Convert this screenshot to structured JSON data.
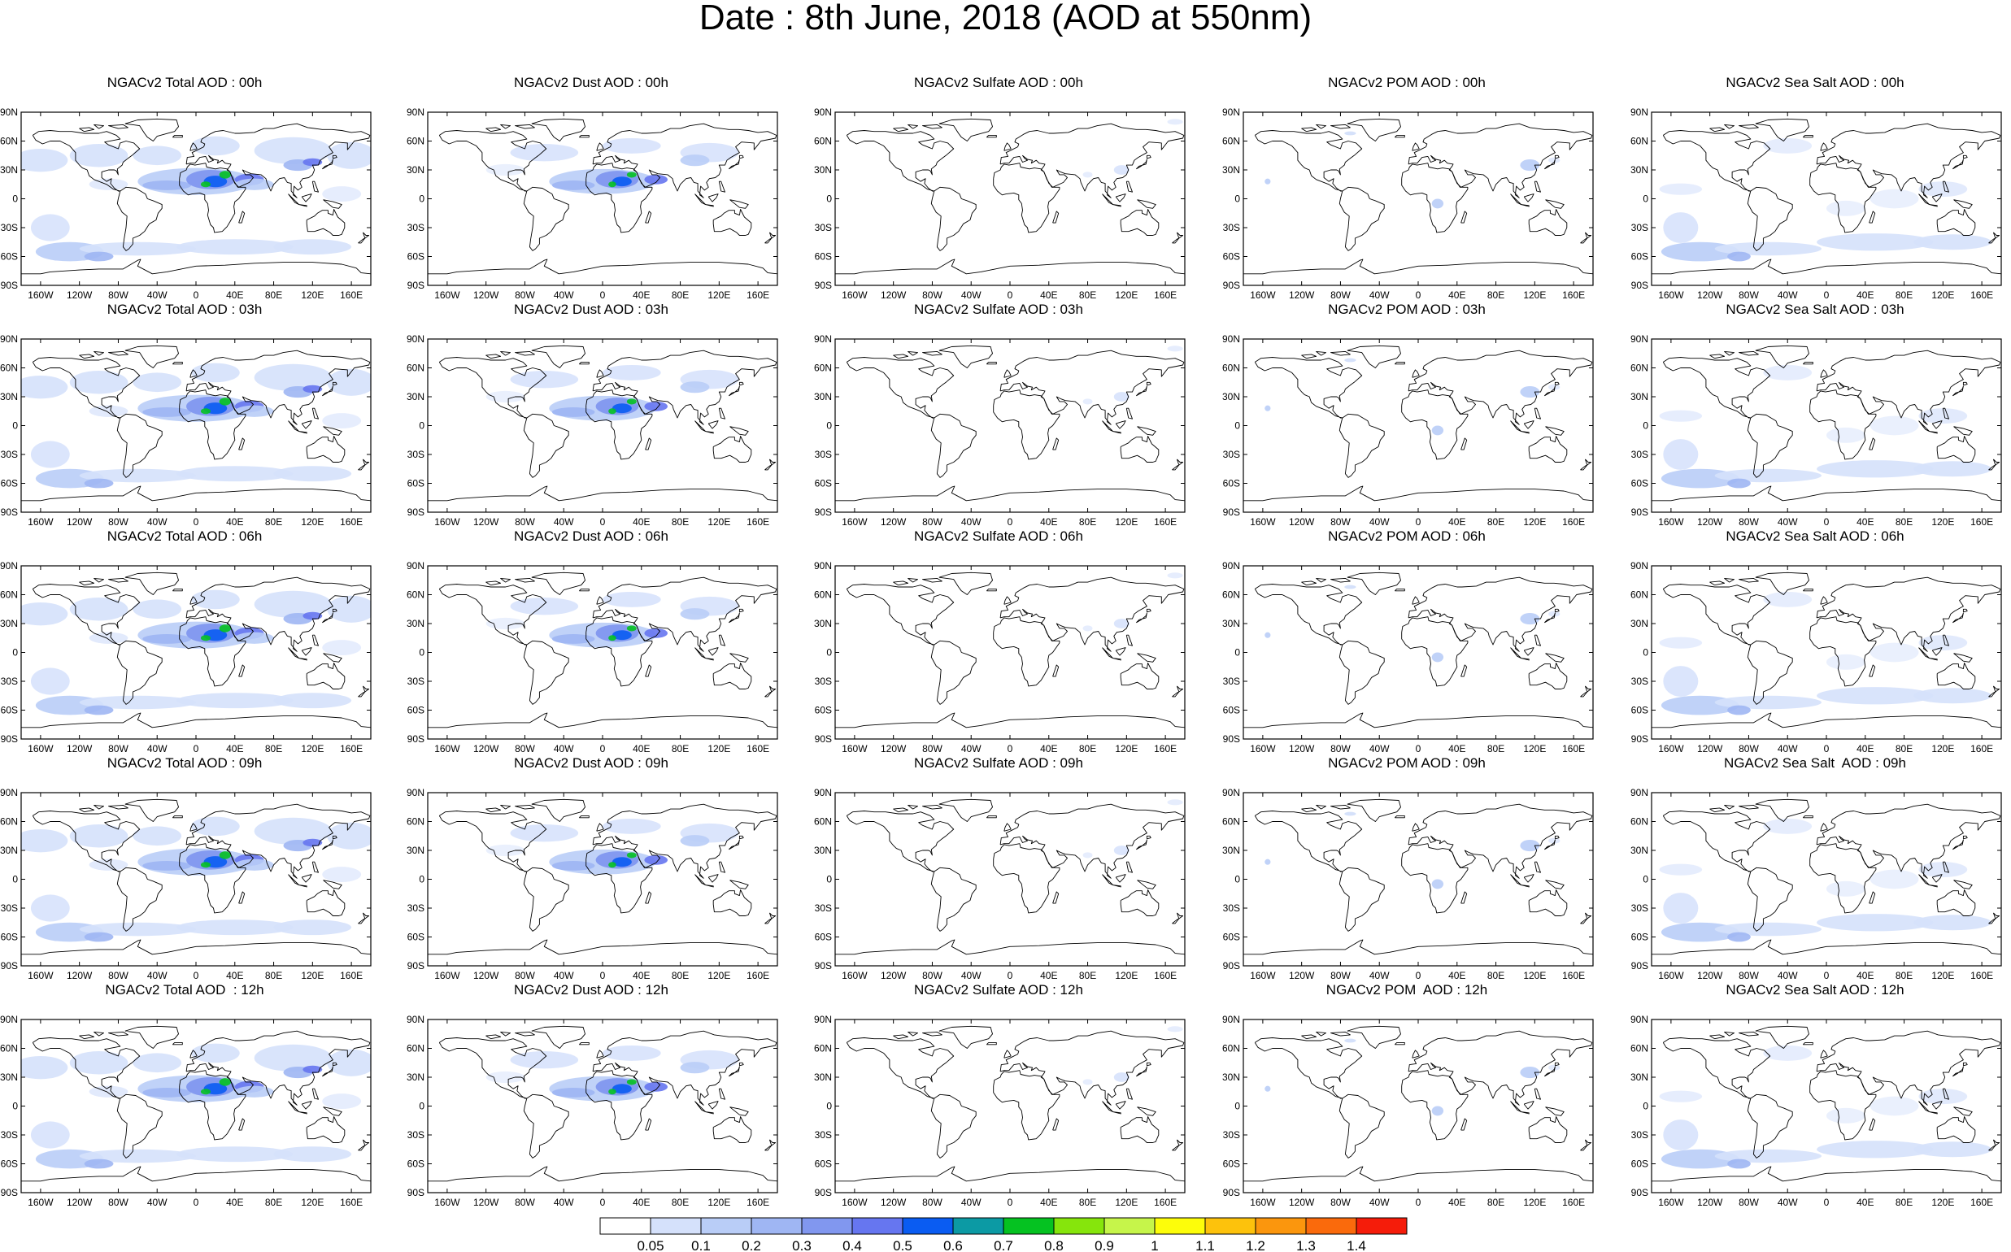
{
  "title": "Date : 8th June, 2018 (AOD at 550nm)",
  "axes": {
    "lat_ticks": [
      "90N",
      "60N",
      "30N",
      "0",
      "30S",
      "60S",
      "90S"
    ],
    "lon_ticks": [
      "160W",
      "120W",
      "80W",
      "40W",
      "0",
      "40E",
      "80E",
      "120E",
      "160E"
    ]
  },
  "products": [
    "Total",
    "Dust",
    "Sulfate",
    "POM",
    "Sea Salt"
  ],
  "panel_titles": [
    [
      "NGACv2 Total AOD : 00h",
      "NGACv2 Dust AOD : 00h",
      "NGACv2 Sulfate AOD : 00h",
      "NGACv2 POM AOD : 00h",
      "NGACv2 Sea Salt AOD : 00h"
    ],
    [
      "NGACv2 Total AOD : 03h",
      "NGACv2 Dust AOD : 03h",
      "NGACv2 Sulfate AOD : 03h",
      "NGACv2 POM AOD : 03h",
      "NGACv2 Sea Salt AOD : 03h"
    ],
    [
      "NGACv2 Total AOD : 06h",
      "NGACv2 Dust AOD : 06h",
      "NGACv2 Sulfate AOD : 06h",
      "NGACv2 POM AOD : 06h",
      "NGACv2 Sea Salt AOD : 06h"
    ],
    [
      "NGACv2 Total AOD : 09h",
      "NGACv2 Dust AOD : 09h",
      "NGACv2 Sulfate AOD : 09h",
      "NGACv2 POM AOD : 09h",
      "NGACv2 Sea Salt  AOD : 09h"
    ],
    [
      "NGACv2 Total AOD  : 12h",
      "NGACv2 Dust AOD : 12h",
      "NGACv2 Sulfate AOD : 12h",
      "NGACv2 POM  AOD : 12h",
      "NGACv2 Sea Salt AOD : 12h"
    ]
  ],
  "colorbar": {
    "labels": [
      "0.05",
      "0.1",
      "0.2",
      "0.3",
      "0.4",
      "0.5",
      "0.6",
      "0.7",
      "0.8",
      "0.9",
      "1",
      "1.1",
      "1.2",
      "1.3",
      "1.4"
    ],
    "colors": [
      "#ffffff",
      "#d5e1fb",
      "#b9cdf7",
      "#9fb6f3",
      "#8197ef",
      "#6676f0",
      "#0a5cf2",
      "#0c9aa4",
      "#05c221",
      "#86e50c",
      "#c6f54a",
      "#fdfd0a",
      "#fdc20c",
      "#fb960d",
      "#fa6a0c",
      "#f51c0a"
    ]
  }
}
